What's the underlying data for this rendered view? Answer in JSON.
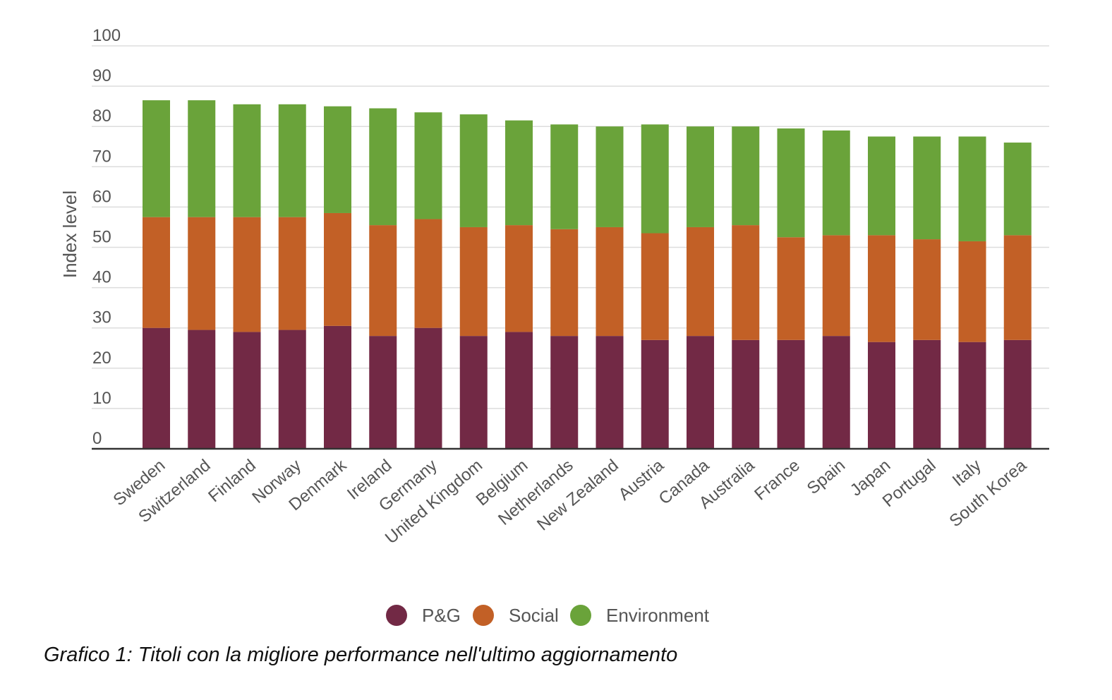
{
  "caption": "Grafico 1: Titoli con la migliore performance nell'ultimo aggiornamento",
  "chart_data": {
    "type": "bar",
    "stacked": true,
    "ylabel": "Index level",
    "ylim": [
      0,
      100
    ],
    "yticks": [
      0,
      10,
      20,
      30,
      40,
      50,
      60,
      70,
      80,
      90,
      100
    ],
    "grid": true,
    "legend_position": "bottom",
    "categories": [
      "Sweden",
      "Switzerland",
      "Finland",
      "Norway",
      "Denmark",
      "Ireland",
      "Germany",
      "United Kingdom",
      "Belgium",
      "Netherlands",
      "New Zealand",
      "Austria",
      "Canada",
      "Australia",
      "France",
      "Spain",
      "Japan",
      "Portugal",
      "Italy",
      "South Korea"
    ],
    "series": [
      {
        "name": "P&G",
        "color": "#722945",
        "values": [
          30.0,
          29.5,
          29.0,
          29.5,
          30.5,
          28.0,
          30.0,
          28.0,
          29.0,
          28.0,
          28.0,
          27.0,
          28.0,
          27.0,
          27.0,
          28.0,
          26.5,
          27.0,
          26.5,
          27.0
        ]
      },
      {
        "name": "Social",
        "color": "#C26026",
        "values": [
          27.5,
          28.0,
          28.5,
          28.0,
          28.0,
          27.5,
          27.0,
          27.0,
          26.5,
          26.5,
          27.0,
          26.5,
          27.0,
          28.5,
          25.5,
          25.0,
          26.5,
          25.0,
          25.0,
          26.0
        ]
      },
      {
        "name": "Environment",
        "color": "#6AA33A",
        "values": [
          29.0,
          29.0,
          28.0,
          28.0,
          26.5,
          29.0,
          26.5,
          28.0,
          26.0,
          26.0,
          25.0,
          27.0,
          25.0,
          24.5,
          27.0,
          26.0,
          24.5,
          25.5,
          26.0,
          23.0
        ]
      }
    ]
  }
}
